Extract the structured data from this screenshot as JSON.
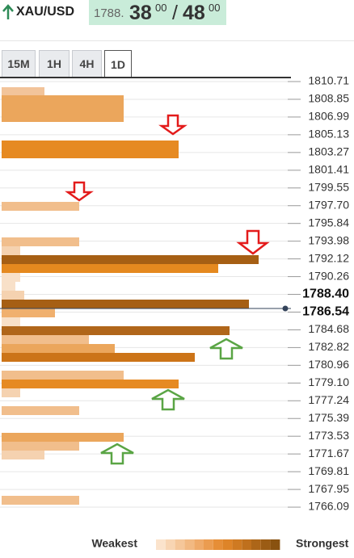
{
  "header": {
    "symbol": "XAU/USD",
    "price": {
      "prefix": "1788.",
      "bid": "38",
      "bid_fraction": "00",
      "separator": "/",
      "ask": "48",
      "ask_fraction": "00"
    }
  },
  "tabs": [
    "15M",
    "1H",
    "4H",
    "1D"
  ],
  "levels": [
    "1810.71",
    "1808.85",
    "1806.99",
    "1805.13",
    "1803.27",
    "1801.41",
    "1799.55",
    "1797.70",
    "1795.84",
    "1793.98",
    "1792.12",
    "1790.26",
    "1788.40",
    "1786.54",
    "1784.68",
    "1782.82",
    "1780.96",
    "1779.10",
    "1777.24",
    "1775.39",
    "1773.53",
    "1771.67",
    "1769.81",
    "1767.95",
    "1766.09"
  ],
  "legend": {
    "weakest": "Weakest",
    "strongest": "Strongest"
  }
}
